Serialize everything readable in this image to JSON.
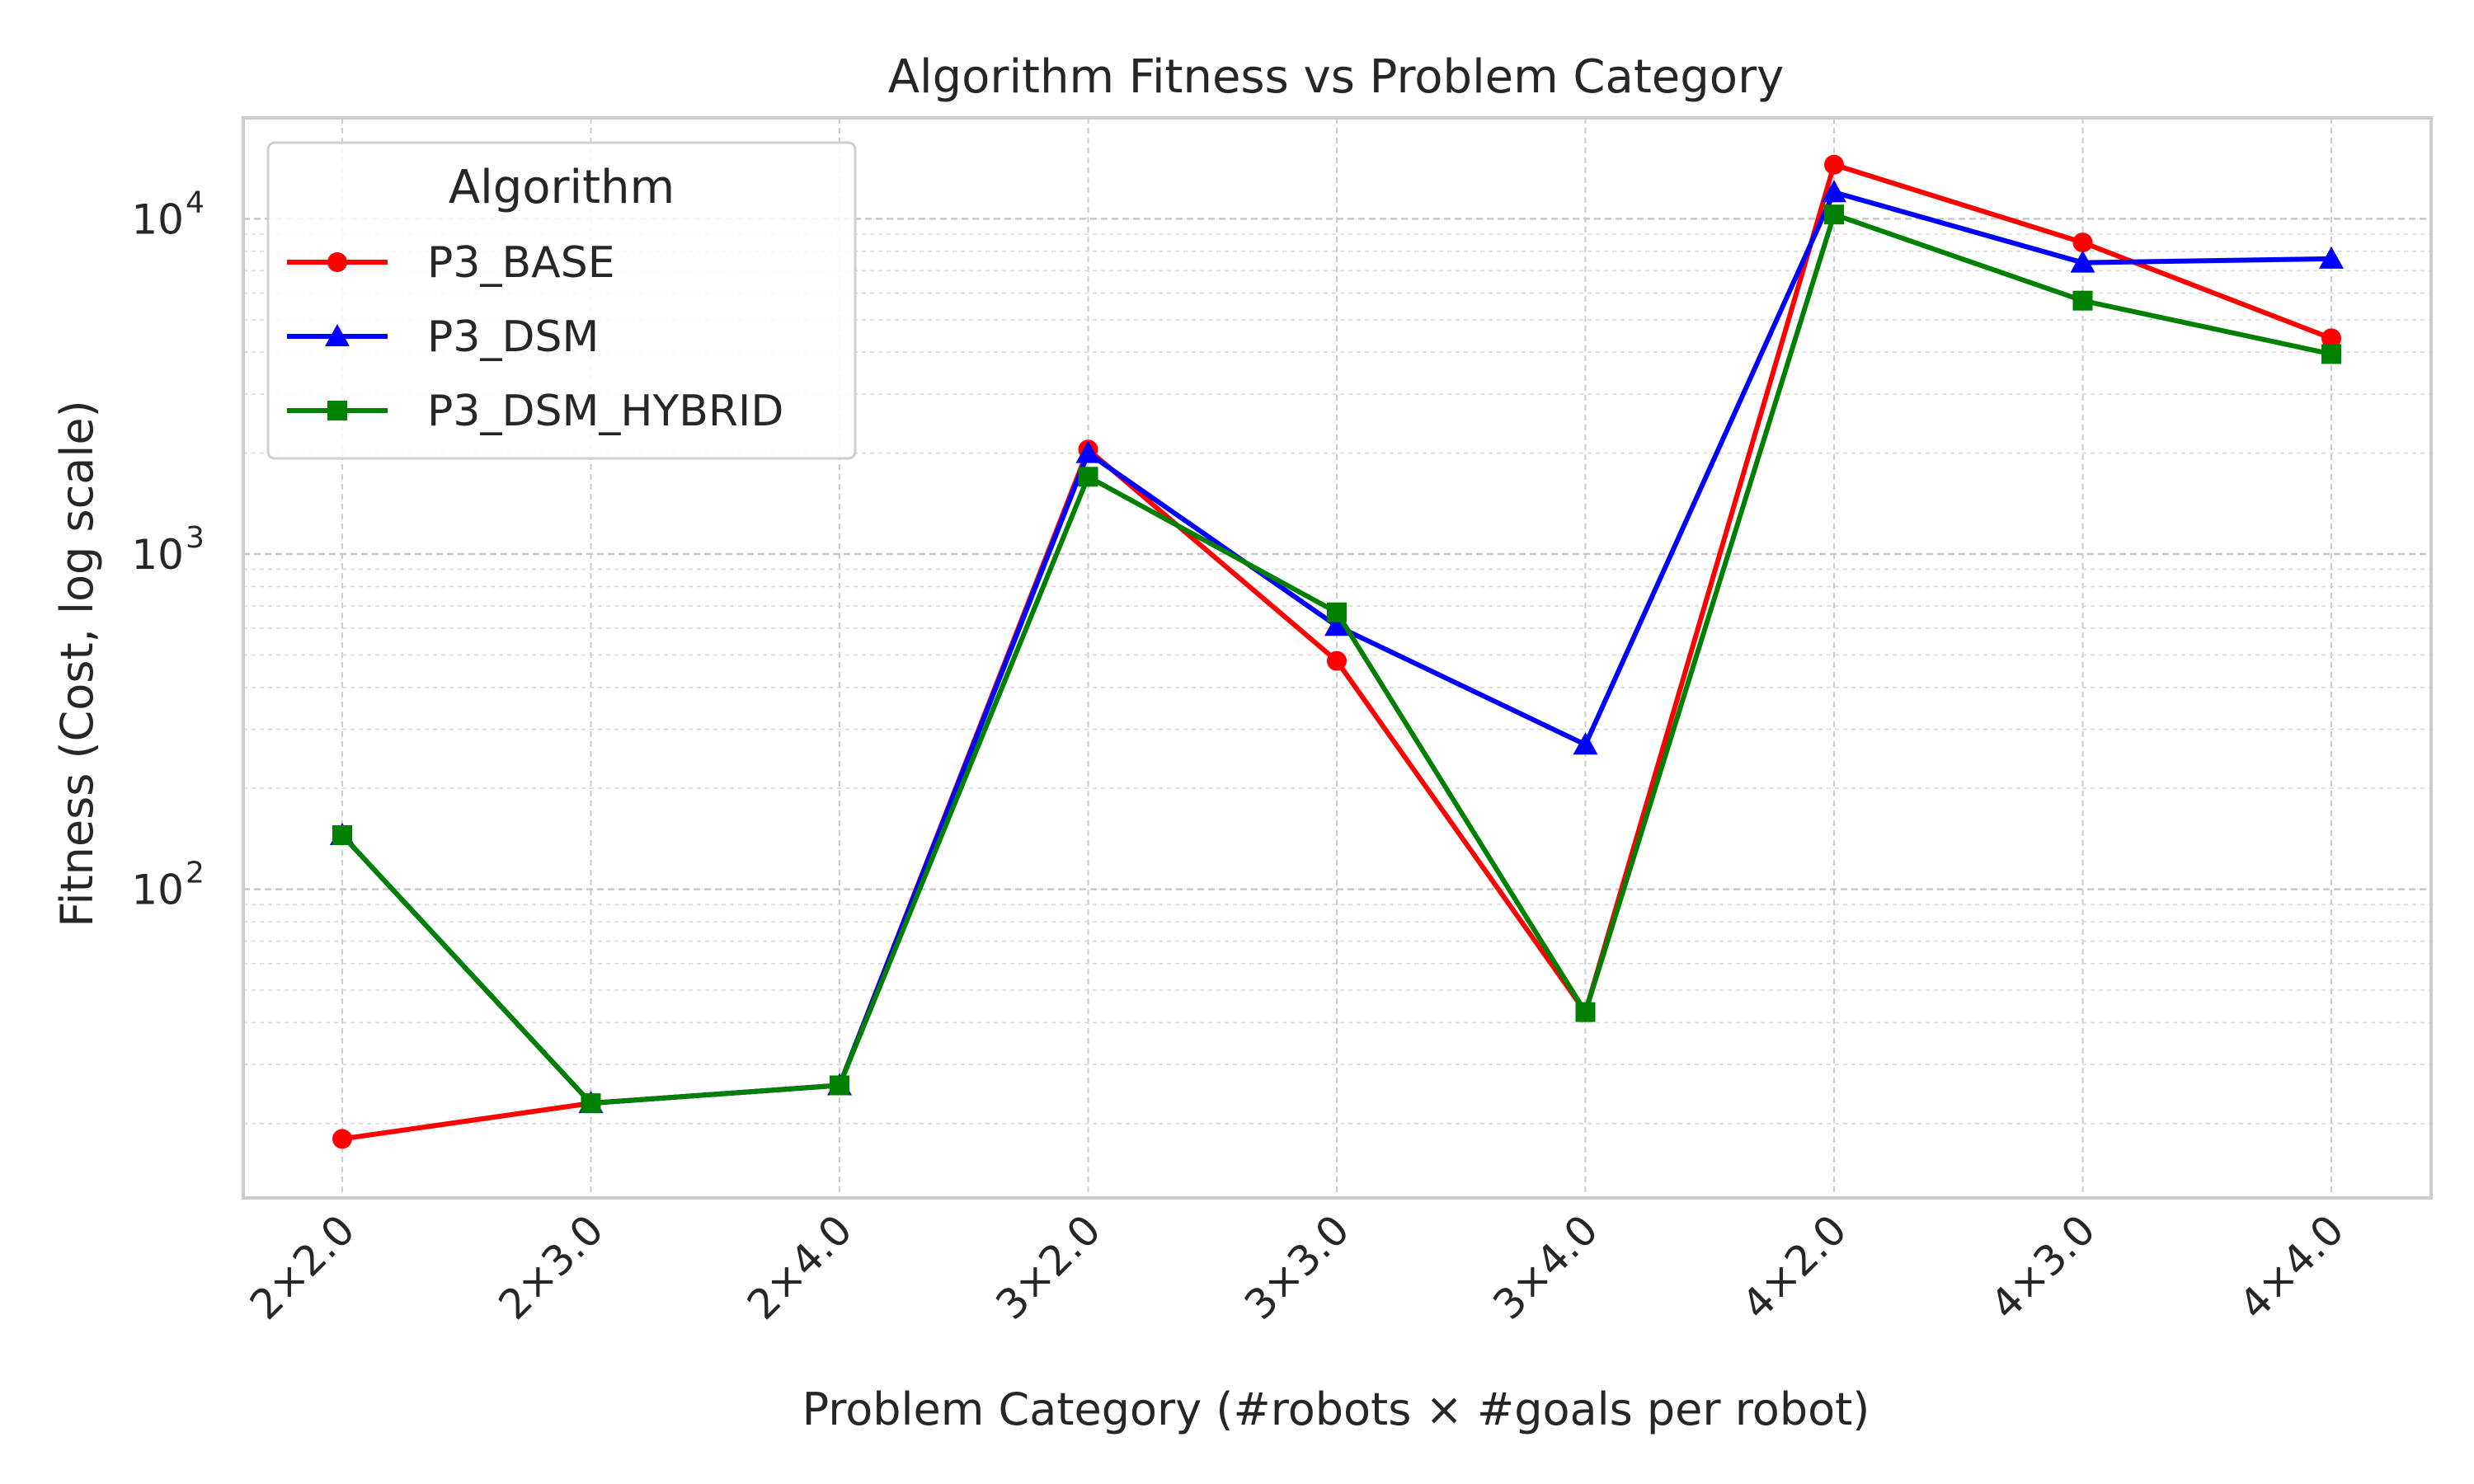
{
  "chart_data": {
    "type": "line",
    "title": "Algorithm Fitness vs Problem Category",
    "xlabel": "Problem Category (#robots × #goals per robot)",
    "ylabel": "Fitness (Cost, log scale)",
    "yscale": "log",
    "ylim": [
      12,
      20000
    ],
    "grid": true,
    "legend": {
      "title": "Algorithm",
      "placement": "top-left"
    },
    "categories": [
      "2×2.0",
      "2×3.0",
      "2×4.0",
      "3×2.0",
      "3×3.0",
      "3×4.0",
      "4×2.0",
      "4×3.0",
      "4×4.0"
    ],
    "y_ticks": [
      {
        "value": 100,
        "base": "10",
        "exp": "2"
      },
      {
        "value": 1000,
        "base": "10",
        "exp": "3"
      },
      {
        "value": 10000,
        "base": "10",
        "exp": "4"
      }
    ],
    "series": [
      {
        "name": "P3_BASE",
        "color": "#ff0000",
        "marker": "circle",
        "values": [
          18,
          23,
          26,
          2050,
          480,
          43,
          14500,
          8500,
          4400
        ]
      },
      {
        "name": "P3_DSM",
        "color": "#0000ff",
        "marker": "triangle",
        "values": [
          145,
          23,
          26,
          2000,
          610,
          270,
          12000,
          7400,
          7600
        ]
      },
      {
        "name": "P3_DSM_HYBRID",
        "color": "#008000",
        "marker": "square",
        "values": [
          145,
          23,
          26,
          1700,
          670,
          43,
          10300,
          5700,
          3950
        ]
      }
    ]
  }
}
